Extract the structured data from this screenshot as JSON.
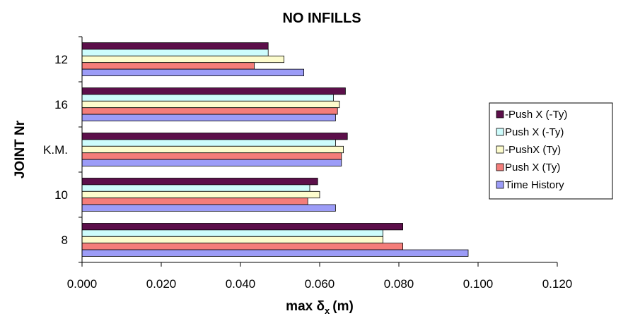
{
  "chart_data": {
    "type": "bar",
    "orientation": "horizontal",
    "title": "NO INFILLS",
    "xlabel": "max δx (m)",
    "xlabel_main": "max δ",
    "xlabel_sub": "x",
    "xlabel_unit": "(m)",
    "ylabel": "JOINT Nr",
    "xlim": [
      0,
      0.12
    ],
    "xticks": [
      "0.000",
      "0.020",
      "0.040",
      "0.060",
      "0.080",
      "0.100",
      "0.120"
    ],
    "grid": false,
    "legend_position": "right",
    "categories": [
      "12",
      "16",
      "K.M.",
      "10",
      "8"
    ],
    "series": [
      {
        "name": "-Push X (-Ty)",
        "color": "#5c0f4a",
        "values": [
          0.047,
          0.0665,
          0.067,
          0.0595,
          0.081
        ]
      },
      {
        "name": "Push X (-Ty)",
        "color": "#cdfcfc",
        "values": [
          0.047,
          0.0635,
          0.064,
          0.0575,
          0.076
        ]
      },
      {
        "name": "-PushX (Ty)",
        "color": "#fdfccd",
        "values": [
          0.051,
          0.065,
          0.066,
          0.06,
          0.076
        ]
      },
      {
        "name": "Push X (Ty)",
        "color": "#f47d7a",
        "values": [
          0.0435,
          0.0645,
          0.0655,
          0.057,
          0.081
        ]
      },
      {
        "name": "Time History",
        "color": "#9c9cf7",
        "values": [
          0.056,
          0.064,
          0.0655,
          0.064,
          0.0975
        ]
      }
    ]
  }
}
